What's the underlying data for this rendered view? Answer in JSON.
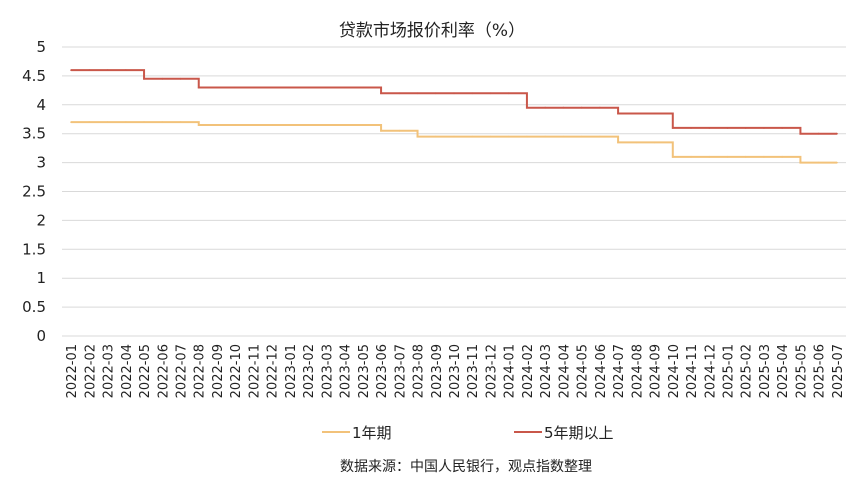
{
  "chart_data": {
    "type": "line",
    "title": "贷款市场报价利率（%）",
    "source": "数据来源：中国人民银行，观点指数整理",
    "ylim": [
      0,
      5
    ],
    "yticks": [
      "0",
      "0.5",
      "1",
      "1.5",
      "2",
      "2.5",
      "3",
      "3.5",
      "4",
      "4.5",
      "5"
    ],
    "grid": true,
    "legend": "bottom",
    "step": true,
    "x": [
      "2022-01",
      "2022-02",
      "2022-03",
      "2022-04",
      "2022-05",
      "2022-06",
      "2022-07",
      "2022-08",
      "2022-09",
      "2022-10",
      "2022-11",
      "2022-12",
      "2023-01",
      "2023-02",
      "2023-03",
      "2023-04",
      "2023-05",
      "2023-06",
      "2023-07",
      "2023-08",
      "2023-09",
      "2023-10",
      "2023-11",
      "2023-12",
      "2024-01",
      "2024-02",
      "2024-03",
      "2024-04",
      "2024-05",
      "2024-06",
      "2024-07",
      "2024-08",
      "2024-09",
      "2024-10",
      "2024-11",
      "2024-12",
      "2025-01",
      "2025-02",
      "2025-03",
      "2025-04",
      "2025-05",
      "2025-06",
      "2025-07"
    ],
    "series": [
      {
        "name": "1年期",
        "color": "#f2c27a",
        "values": [
          3.7,
          3.7,
          3.7,
          3.7,
          3.7,
          3.7,
          3.7,
          3.65,
          3.65,
          3.65,
          3.65,
          3.65,
          3.65,
          3.65,
          3.65,
          3.65,
          3.65,
          3.55,
          3.55,
          3.45,
          3.45,
          3.45,
          3.45,
          3.45,
          3.45,
          3.45,
          3.45,
          3.45,
          3.45,
          3.45,
          3.35,
          3.35,
          3.35,
          3.1,
          3.1,
          3.1,
          3.1,
          3.1,
          3.1,
          3.1,
          3.0,
          3.0,
          3.0
        ]
      },
      {
        "name": "5年期以上",
        "color": "#c9574a",
        "values": [
          4.6,
          4.6,
          4.6,
          4.6,
          4.45,
          4.45,
          4.45,
          4.3,
          4.3,
          4.3,
          4.3,
          4.3,
          4.3,
          4.3,
          4.3,
          4.3,
          4.3,
          4.2,
          4.2,
          4.2,
          4.2,
          4.2,
          4.2,
          4.2,
          4.2,
          3.95,
          3.95,
          3.95,
          3.95,
          3.95,
          3.85,
          3.85,
          3.85,
          3.6,
          3.6,
          3.6,
          3.6,
          3.6,
          3.6,
          3.6,
          3.5,
          3.5,
          3.5
        ]
      }
    ]
  }
}
